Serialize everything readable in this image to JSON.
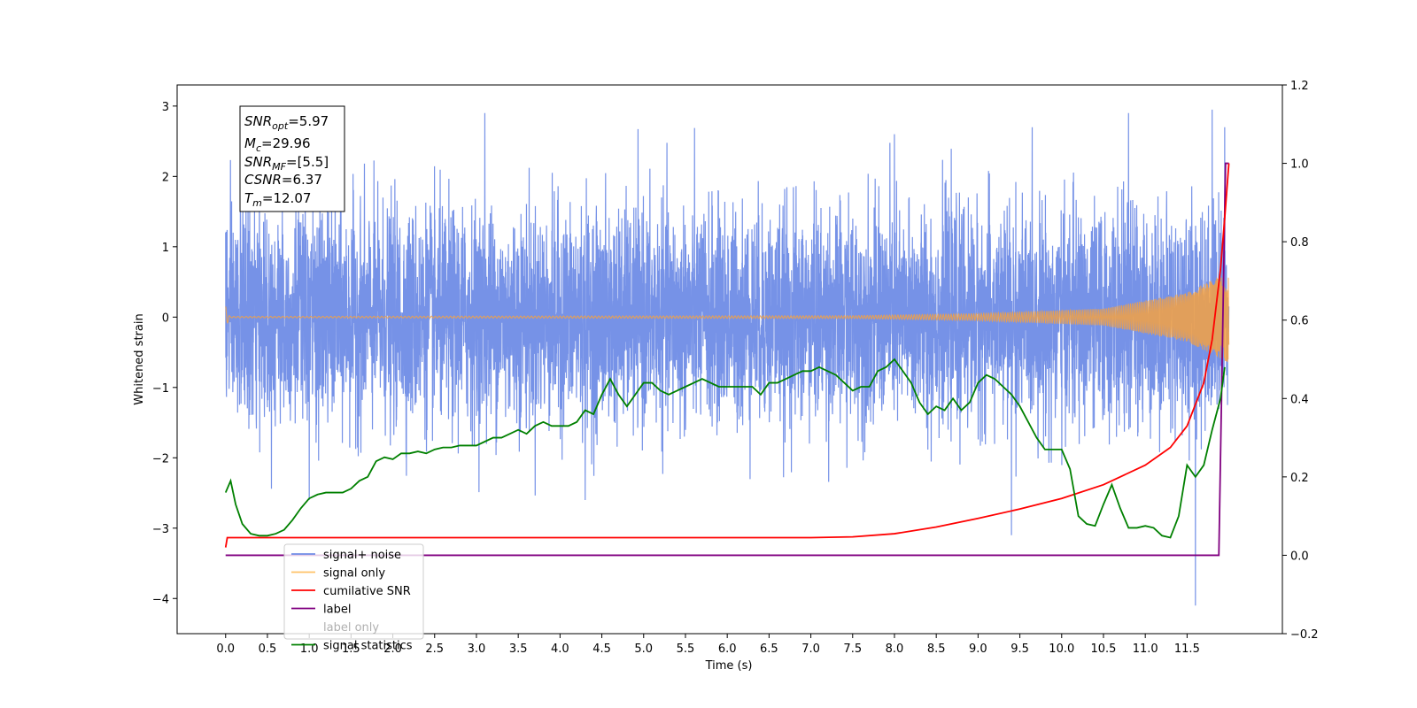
{
  "chart_data": {
    "type": "line",
    "title": "",
    "xlabel": "Time (s)",
    "ylabel": "Whitened strain",
    "xlim": [
      -0.58,
      12.64
    ],
    "ylim": [
      -4.5,
      3.3
    ],
    "y2lim": [
      -0.2,
      1.2
    ],
    "x_ticks": [
      "0.0",
      "0.5",
      "1.0",
      "1.5",
      "2.0",
      "2.5",
      "3.0",
      "3.5",
      "4.0",
      "4.5",
      "5.0",
      "5.5",
      "6.0",
      "6.5",
      "7.0",
      "7.5",
      "8.0",
      "8.5",
      "9.0",
      "9.5",
      "10.0",
      "10.5",
      "11.0",
      "11.5"
    ],
    "y_ticks": [
      "3",
      "2",
      "1",
      "0",
      "−1",
      "−2",
      "−3",
      "−4"
    ],
    "y2_ticks": [
      "1.2",
      "1.0",
      "0.8",
      "0.6",
      "0.4",
      "0.2",
      "0.0",
      "−0.2"
    ],
    "grid": false,
    "legend_position": "bottom-left",
    "info_box": {
      "snr_opt": {
        "sym": "SNR",
        "sub": "opt",
        "val": "=5.97"
      },
      "mc": {
        "sym": "M",
        "sub": "c",
        "val": "=29.96"
      },
      "snr_mf": {
        "sym": "SNR",
        "sub": "MF",
        "val": "=[5.5]"
      },
      "csnr": {
        "sym": "CSNR",
        "val": "=6.37"
      },
      "tm": {
        "sym": "T",
        "sub": "m",
        "val": "=12.07"
      }
    },
    "series": [
      {
        "name": "signal+ noise",
        "axis": "left",
        "color": "#6f8ce6",
        "description_range": [
          -2.6,
          3.0
        ],
        "spikes": [
          [
            0.0,
            1.2
          ],
          [
            1.0,
            -2.6
          ],
          [
            3.1,
            2.9
          ],
          [
            4.3,
            -2.6
          ],
          [
            8.0,
            2.6
          ],
          [
            9.4,
            -3.1
          ],
          [
            10.8,
            2.9
          ],
          [
            11.6,
            -4.1
          ],
          [
            11.8,
            2.95
          ],
          [
            11.95,
            2.7
          ]
        ],
        "x": [
          0.0,
          12.0
        ]
      },
      {
        "name": "signal only",
        "axis": "left",
        "color": "#f5a142",
        "x": [
          0.0,
          12.0
        ],
        "envelope": [
          [
            0.0,
            0.15
          ],
          [
            0.05,
            0.01
          ],
          [
            7.5,
            0.02
          ],
          [
            9.0,
            0.05
          ],
          [
            10.5,
            0.12
          ],
          [
            11.5,
            0.35
          ],
          [
            12.0,
            0.65
          ]
        ]
      },
      {
        "name": "cumilative SNR",
        "axis": "right",
        "color": "#ff0000",
        "x": [
          0.0,
          0.02,
          0.05,
          1.0,
          2.0,
          3.0,
          4.0,
          5.0,
          6.0,
          7.0,
          7.5,
          8.0,
          8.5,
          9.0,
          9.5,
          10.0,
          10.5,
          11.0,
          11.3,
          11.5,
          11.7,
          11.8,
          11.9,
          11.95,
          12.0
        ],
        "values": [
          0.02,
          0.045,
          0.045,
          0.045,
          0.045,
          0.045,
          0.045,
          0.045,
          0.045,
          0.045,
          0.047,
          0.055,
          0.072,
          0.094,
          0.118,
          0.145,
          0.18,
          0.23,
          0.275,
          0.33,
          0.44,
          0.55,
          0.73,
          0.86,
          1.0
        ]
      },
      {
        "name": "label",
        "axis": "right",
        "color": "#800080",
        "x": [
          0.0,
          11.88,
          11.96,
          12.0
        ],
        "values": [
          0.0,
          0.0,
          1.0,
          1.0
        ]
      },
      {
        "name": "label only",
        "axis": "right",
        "color": "#800080",
        "x": [],
        "values": []
      },
      {
        "name": "signal statistics",
        "axis": "right",
        "color": "#008000",
        "x": [
          0.0,
          0.06,
          0.12,
          0.2,
          0.3,
          0.4,
          0.5,
          0.6,
          0.7,
          0.8,
          0.9,
          1.0,
          1.1,
          1.2,
          1.3,
          1.4,
          1.5,
          1.6,
          1.7,
          1.8,
          1.9,
          2.0,
          2.1,
          2.2,
          2.3,
          2.4,
          2.5,
          2.6,
          2.7,
          2.8,
          2.9,
          3.0,
          3.1,
          3.2,
          3.3,
          3.4,
          3.5,
          3.6,
          3.7,
          3.8,
          3.9,
          4.0,
          4.1,
          4.2,
          4.3,
          4.4,
          4.5,
          4.6,
          4.7,
          4.8,
          4.9,
          5.0,
          5.1,
          5.2,
          5.3,
          5.4,
          5.5,
          5.6,
          5.7,
          5.8,
          5.9,
          6.0,
          6.1,
          6.2,
          6.3,
          6.4,
          6.5,
          6.6,
          6.7,
          6.8,
          6.9,
          7.0,
          7.1,
          7.2,
          7.3,
          7.4,
          7.5,
          7.6,
          7.7,
          7.8,
          7.9,
          8.0,
          8.1,
          8.2,
          8.3,
          8.4,
          8.5,
          8.6,
          8.7,
          8.8,
          8.9,
          9.0,
          9.1,
          9.2,
          9.3,
          9.4,
          9.5,
          9.6,
          9.7,
          9.8,
          9.9,
          10.0,
          10.1,
          10.2,
          10.3,
          10.4,
          10.5,
          10.6,
          10.7,
          10.8,
          10.9,
          11.0,
          11.1,
          11.2,
          11.3,
          11.4,
          11.5,
          11.6,
          11.7,
          11.8,
          11.9,
          11.95
        ],
        "values": [
          0.16,
          0.19,
          0.13,
          0.08,
          0.055,
          0.05,
          0.05,
          0.055,
          0.065,
          0.09,
          0.12,
          0.145,
          0.155,
          0.16,
          0.16,
          0.16,
          0.17,
          0.19,
          0.2,
          0.24,
          0.25,
          0.245,
          0.26,
          0.26,
          0.265,
          0.26,
          0.27,
          0.275,
          0.275,
          0.28,
          0.28,
          0.28,
          0.29,
          0.3,
          0.3,
          0.31,
          0.32,
          0.31,
          0.33,
          0.34,
          0.33,
          0.33,
          0.33,
          0.34,
          0.37,
          0.36,
          0.41,
          0.45,
          0.41,
          0.38,
          0.41,
          0.44,
          0.44,
          0.42,
          0.41,
          0.42,
          0.43,
          0.44,
          0.45,
          0.44,
          0.43,
          0.43,
          0.43,
          0.43,
          0.43,
          0.41,
          0.44,
          0.44,
          0.45,
          0.46,
          0.47,
          0.47,
          0.48,
          0.47,
          0.46,
          0.44,
          0.42,
          0.43,
          0.43,
          0.47,
          0.48,
          0.5,
          0.47,
          0.44,
          0.39,
          0.36,
          0.38,
          0.37,
          0.4,
          0.37,
          0.39,
          0.44,
          0.46,
          0.45,
          0.43,
          0.41,
          0.38,
          0.34,
          0.3,
          0.27,
          0.27,
          0.27,
          0.22,
          0.1,
          0.08,
          0.075,
          0.13,
          0.18,
          0.12,
          0.07,
          0.07,
          0.075,
          0.07,
          0.05,
          0.045,
          0.1,
          0.23,
          0.2,
          0.23,
          0.32,
          0.4,
          0.48
        ]
      }
    ]
  }
}
